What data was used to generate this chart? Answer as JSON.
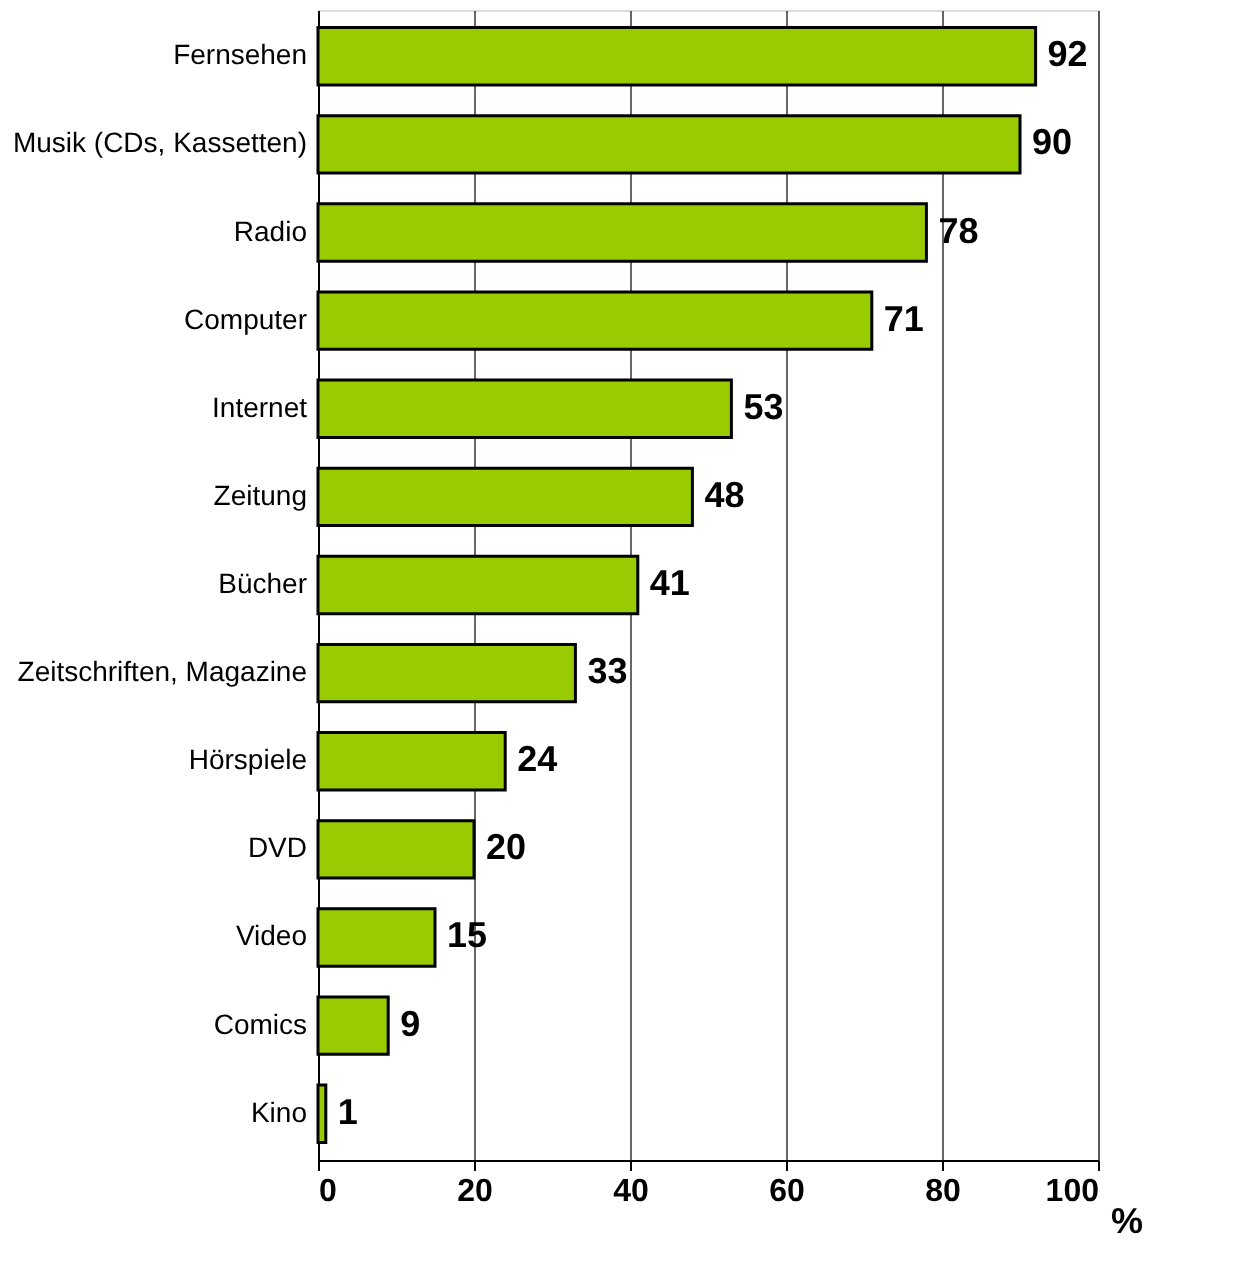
{
  "chart_data": {
    "type": "bar",
    "orientation": "horizontal",
    "categories": [
      "Fernsehen",
      "Musik (CDs, Kassetten)",
      "Radio",
      "Computer",
      "Internet",
      "Zeitung",
      "Bücher",
      "Zeitschriften, Magazine",
      "Hörspiele",
      "DVD",
      "Video",
      "Comics",
      "Kino"
    ],
    "values": [
      92,
      90,
      78,
      71,
      53,
      48,
      41,
      33,
      24,
      20,
      15,
      9,
      1
    ],
    "color": "#99cc00",
    "xlabel": "%",
    "xlim": [
      0,
      100
    ],
    "xticks": [
      0,
      20,
      40,
      60,
      80,
      100
    ],
    "grid": "x",
    "data_labels": true
  }
}
